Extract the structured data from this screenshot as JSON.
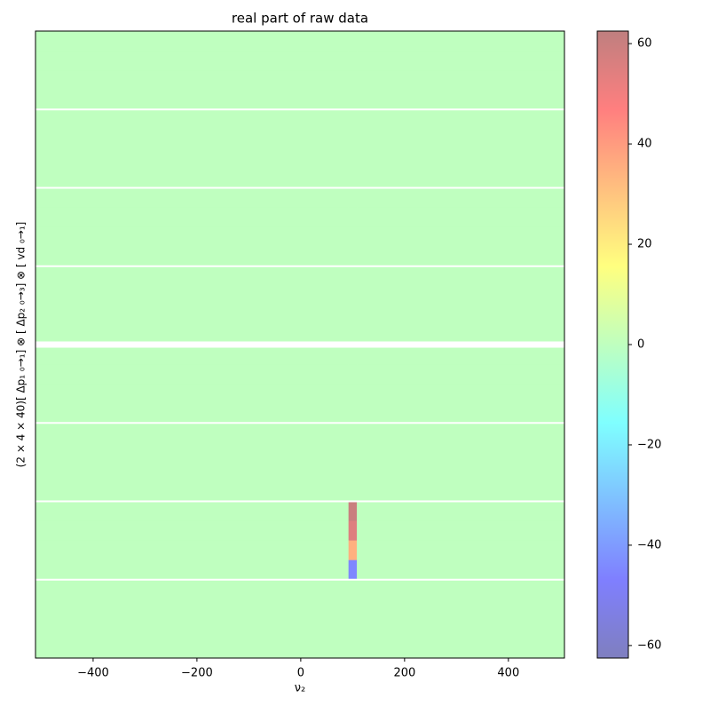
{
  "chart_data": {
    "type": "heatmap",
    "title": "real part of raw data",
    "x_label": "ν₂",
    "y_label": "(2 × 4 × 40)[ Δp₁ ₀→₁] ⊗ [ Δp₂ ₀→₃] ⊗ [ vd ₀→₁]",
    "xbins": [
      -511,
      92,
      108,
      508
    ],
    "xlim": [
      -511,
      508
    ],
    "xticks": [
      {
        "value": -400,
        "label": "−400"
      },
      {
        "value": -200,
        "label": "−200"
      },
      0,
      200,
      400
    ],
    "values": [
      [
        0,
        0,
        0
      ],
      [
        0,
        0,
        0
      ],
      [
        0,
        0,
        0
      ],
      [
        0,
        0,
        0
      ],
      [
        0,
        0,
        0
      ],
      [
        0,
        0,
        0
      ],
      [
        0,
        0,
        0
      ],
      [
        0,
        0,
        0
      ],
      [
        0,
        0,
        0
      ],
      [
        0,
        0,
        0
      ],
      [
        0,
        0,
        0
      ],
      [
        0,
        0,
        0
      ],
      [
        0,
        0,
        0
      ],
      [
        0,
        0,
        0
      ],
      [
        0,
        0,
        0
      ],
      [
        0,
        0,
        0
      ],
      [
        0,
        0,
        0
      ],
      [
        0,
        0,
        0
      ],
      [
        0,
        0,
        0
      ],
      [
        0,
        0,
        0
      ],
      [
        0,
        0,
        0
      ],
      [
        0,
        0,
        0
      ],
      [
        0,
        0,
        0
      ],
      [
        0,
        0,
        0
      ],
      [
        0,
        60,
        0
      ],
      [
        0,
        55,
        0
      ],
      [
        0,
        35,
        0
      ],
      [
        0,
        -45,
        0
      ],
      [
        0,
        0,
        0
      ],
      [
        0,
        0,
        0
      ],
      [
        0,
        0,
        0
      ],
      [
        0,
        0,
        0
      ]
    ],
    "clim": [
      -62.5,
      62.5
    ],
    "cticks": [
      {
        "value": -60,
        "label": "−60"
      },
      {
        "value": -40,
        "label": "−40"
      },
      {
        "value": -20,
        "label": "−20"
      },
      0,
      20,
      40,
      60
    ],
    "colormap": [
      "#7f7fbf",
      "#7f7fff",
      "#7fbfff",
      "#7fffff",
      "#bfffbf",
      "#ffff7f",
      "#ffbf7f",
      "#ff7f7f",
      "#bf7f7f"
    ]
  }
}
